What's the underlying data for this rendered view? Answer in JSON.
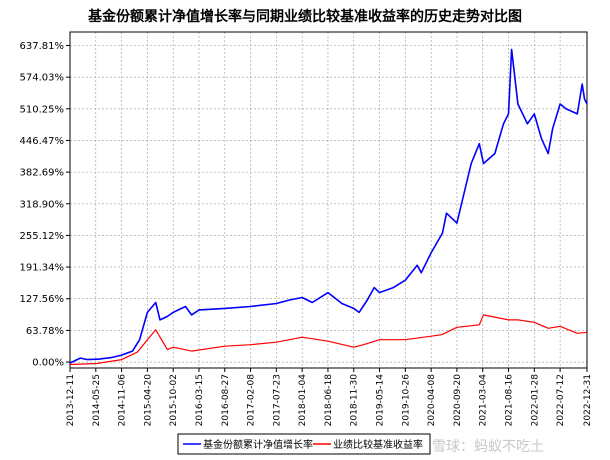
{
  "chart_data": {
    "type": "line",
    "title": "基金份额累计净值增长率与同期业绩比较基准收益率的历史走势对比图",
    "xlabel": "",
    "ylabel": "",
    "y_unit": "%",
    "yticks": [
      "637.81%",
      "574.03%",
      "510.25%",
      "446.47%",
      "382.69%",
      "318.90%",
      "255.12%",
      "191.34%",
      "127.56%",
      "63.78%",
      "0.00%"
    ],
    "ytick_values": [
      637.81,
      574.03,
      510.25,
      446.47,
      382.69,
      318.9,
      255.12,
      191.34,
      127.56,
      63.78,
      0.0
    ],
    "ylim": [
      -12,
      665
    ],
    "xticks": [
      "2013-12-11",
      "2014-05-25",
      "2014-11-06",
      "2015-04-20",
      "2015-10-02",
      "2016-03-15",
      "2016-08-27",
      "2017-02-08",
      "2017-07-23",
      "2018-01-04",
      "2018-06-18",
      "2018-11-30",
      "2019-05-14",
      "2019-10-26",
      "2020-04-08",
      "2020-09-20",
      "2021-03-04",
      "2021-08-16",
      "2022-01-28",
      "2022-07-12",
      "2022-12-31"
    ],
    "xlim": [
      "2013-12-11",
      "2022-12-31"
    ],
    "grid": true,
    "legend_position": "bottom",
    "series": [
      {
        "name": "基金份额累计净值增长率",
        "color": "#0000ff",
        "x": [
          "2013-12-11",
          "2014-02-15",
          "2014-04-01",
          "2014-06-15",
          "2014-09-01",
          "2014-11-06",
          "2015-01-15",
          "2015-03-01",
          "2015-04-20",
          "2015-06-12",
          "2015-07-10",
          "2015-08-26",
          "2015-10-02",
          "2015-12-20",
          "2016-01-28",
          "2016-03-15",
          "2016-08-27",
          "2017-02-08",
          "2017-07-23",
          "2017-10-15",
          "2018-01-04",
          "2018-03-10",
          "2018-06-18",
          "2018-09-15",
          "2018-11-30",
          "2019-01-03",
          "2019-02-25",
          "2019-04-10",
          "2019-05-14",
          "2019-08-10",
          "2019-10-26",
          "2020-01-10",
          "2020-02-05",
          "2020-04-08",
          "2020-06-20",
          "2020-07-15",
          "2020-09-20",
          "2020-12-20",
          "2021-02-10",
          "2021-03-09",
          "2021-05-20",
          "2021-07-15",
          "2021-08-16",
          "2021-09-05",
          "2021-10-15",
          "2021-12-15",
          "2022-01-28",
          "2022-03-15",
          "2022-04-27",
          "2022-05-25",
          "2022-07-12",
          "2022-08-20",
          "2022-10-30",
          "2022-11-30",
          "2022-12-15",
          "2022-12-31"
        ],
        "values": [
          -2,
          8,
          5,
          6,
          9,
          14,
          22,
          45,
          100,
          120,
          85,
          92,
          100,
          112,
          95,
          105,
          108,
          112,
          118,
          125,
          130,
          120,
          140,
          118,
          108,
          100,
          125,
          150,
          140,
          150,
          165,
          195,
          180,
          220,
          260,
          300,
          280,
          400,
          440,
          400,
          420,
          480,
          500,
          630,
          520,
          480,
          500,
          450,
          420,
          470,
          520,
          510,
          500,
          560,
          530,
          520
        ]
      },
      {
        "name": "业绩比较基准收益率",
        "color": "#ff0000",
        "x": [
          "2013-12-11",
          "2014-06-01",
          "2014-11-06",
          "2015-02-15",
          "2015-04-20",
          "2015-06-12",
          "2015-08-26",
          "2015-10-02",
          "2016-01-28",
          "2016-08-27",
          "2017-02-08",
          "2017-07-23",
          "2018-01-04",
          "2018-06-18",
          "2018-11-30",
          "2019-02-01",
          "2019-05-14",
          "2019-10-26",
          "2020-04-08",
          "2020-06-15",
          "2020-09-20",
          "2021-02-10",
          "2021-03-09",
          "2021-08-16",
          "2021-10-15",
          "2022-01-28",
          "2022-04-27",
          "2022-07-12",
          "2022-10-30",
          "2022-12-31"
        ],
        "values": [
          -5,
          -3,
          5,
          20,
          45,
          65,
          25,
          30,
          22,
          32,
          35,
          40,
          50,
          42,
          30,
          35,
          45,
          45,
          52,
          55,
          70,
          75,
          95,
          85,
          85,
          80,
          68,
          72,
          58,
          60
        ]
      }
    ]
  },
  "watermark": "雪球：蚂蚁不吃土"
}
